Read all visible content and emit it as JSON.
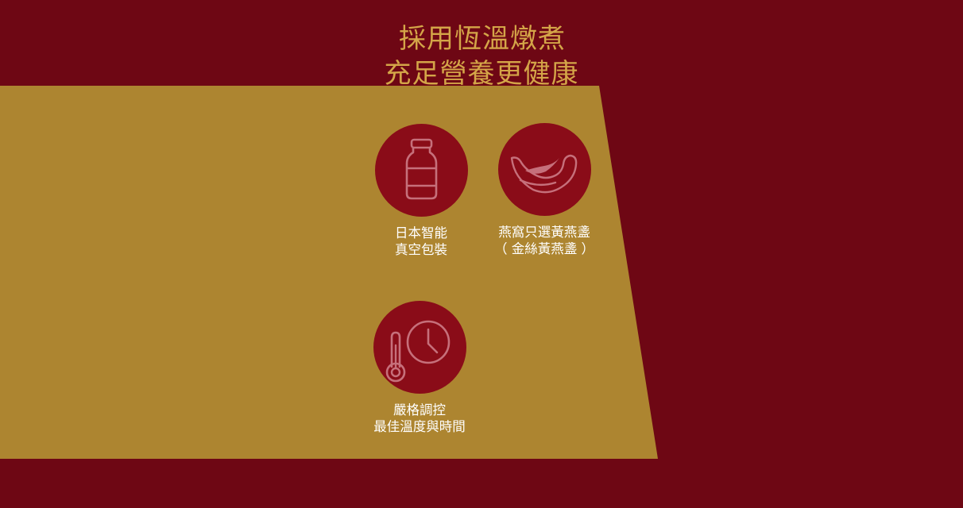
{
  "headline": {
    "line1": "採用恆溫燉煮",
    "line2": "充足營養更健康"
  },
  "colors": {
    "background": "#6e0714",
    "panel": "#ad8530",
    "circle": "#8a0c18",
    "icon": "#c6707b",
    "headline": "#d4a548",
    "caption": "#ffffff"
  },
  "features": [
    {
      "icon": "bottle-icon",
      "caption_line1": "日本智能",
      "caption_line2": "真空包裝"
    },
    {
      "icon": "birds-nest-icon",
      "caption_line1": "燕窩只選黃燕盞",
      "caption_line2": "（ 金絲黃燕盞 ）"
    },
    {
      "icon": "thermometer-clock-icon",
      "caption_line1": "嚴格調控",
      "caption_line2": "最佳溫度與時間"
    }
  ]
}
